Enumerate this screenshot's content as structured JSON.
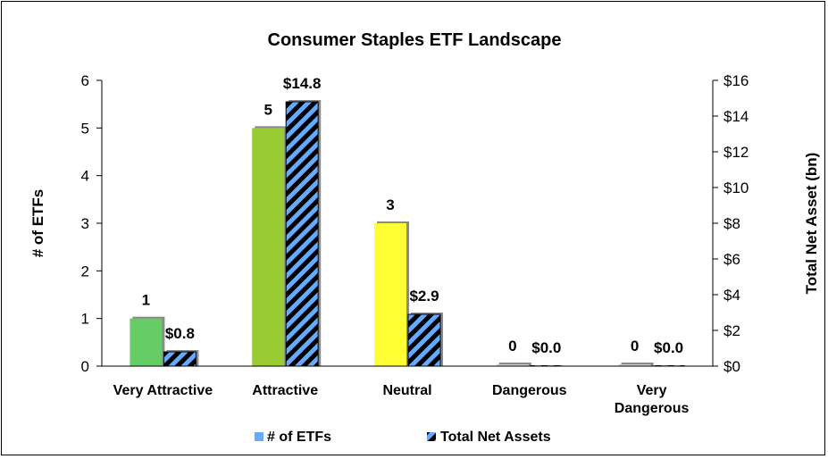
{
  "chart_data": {
    "type": "bar",
    "title": "Consumer Staples ETF Landscape",
    "categories": [
      "Very Attractive",
      "Attractive",
      "Neutral",
      "Dangerous",
      "Very Dangerous"
    ],
    "series": [
      {
        "name": "# of ETFs",
        "axis": "left",
        "values": [
          1,
          5,
          3,
          0,
          0
        ],
        "data_labels": [
          "1",
          "5",
          "3",
          "0",
          "0"
        ],
        "colors": [
          "#66cc66",
          "#99cc33",
          "#ffff33",
          "#b0b0b0",
          "#b0b0b0"
        ]
      },
      {
        "name": "Total Net Assets",
        "axis": "right",
        "values": [
          0.8,
          14.8,
          2.9,
          0.0,
          0.0
        ],
        "data_labels": [
          "$0.8",
          "$14.8",
          "$2.9",
          "$0.0",
          "$0.0"
        ],
        "pattern": "diagonal-stripes",
        "colors": [
          "#66aaff",
          "#000000"
        ]
      }
    ],
    "ylabel": "# of ETFs",
    "ylim": [
      0,
      6
    ],
    "y_ticks": [
      "0",
      "1",
      "2",
      "3",
      "4",
      "5",
      "6"
    ],
    "y2label": "Total Net Asset (bn)",
    "y2lim": [
      0,
      16
    ],
    "y2_ticks": [
      "$0",
      "$2",
      "$4",
      "$6",
      "$8",
      "$10",
      "$12",
      "$14",
      "$16"
    ],
    "grid": false,
    "legend_placement": "bottom"
  }
}
